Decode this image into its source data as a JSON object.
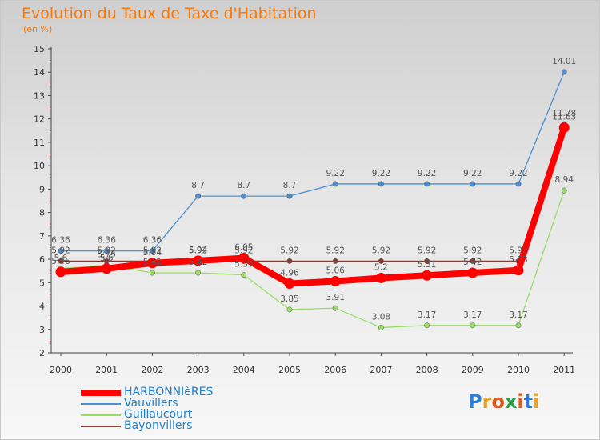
{
  "title": "Evolution du Taux de Taxe d'Habitation",
  "subtitle": "(en %)",
  "logo": {
    "text": "Proxiti",
    "colors": [
      "#2b7fd6",
      "#e8a020",
      "#e05a1a",
      "#27a040",
      "#e05a1a",
      "#2b7fd6",
      "#e8a020"
    ]
  },
  "chart_data": {
    "type": "line",
    "x": [
      "2000",
      "2001",
      "2002",
      "2003",
      "2004",
      "2005",
      "2006",
      "2007",
      "2008",
      "2009",
      "2010",
      "2011"
    ],
    "ylim": [
      2,
      15
    ],
    "yticks": [
      2,
      3,
      4,
      5,
      6,
      7,
      8,
      9,
      10,
      11,
      12,
      13,
      14,
      15
    ],
    "grid": false,
    "legend_position": "bottom-left",
    "series": [
      {
        "name": "HARBONNIèRES",
        "color": "#ff0000",
        "values": [
          5.46,
          5.6,
          5.84,
          5.94,
          6.05,
          4.96,
          5.06,
          5.2,
          5.31,
          5.42,
          5.53,
          11.63
        ],
        "labels": [
          "5.46",
          "5.6",
          "5.84",
          "5.94",
          "6.05",
          "4.96",
          "5.06",
          "5.2",
          "5.31",
          "5.42",
          "5.53",
          "11.63"
        ]
      },
      {
        "name": "Vauvillers",
        "color": "#4a8fd0",
        "values": [
          6.36,
          6.36,
          6.36,
          8.7,
          8.7,
          8.7,
          9.22,
          9.22,
          9.22,
          9.22,
          9.22,
          14.01
        ],
        "labels": [
          "6.36",
          "6.36",
          "6.36",
          "8.7",
          "8.7",
          "8.7",
          "9.22",
          "9.22",
          "9.22",
          "9.22",
          "9.22",
          "14.01"
        ]
      },
      {
        "name": "Guillaucourt",
        "color": "#99dd66",
        "values": [
          5.6,
          5.75,
          5.42,
          5.42,
          5.33,
          3.85,
          3.91,
          3.08,
          3.17,
          3.17,
          3.17,
          8.94
        ],
        "labels": [
          "5.6",
          "5.75",
          "5.42",
          "5.42",
          "5.33",
          "3.85",
          "3.91",
          "3.08",
          "3.17",
          "3.17",
          "3.17",
          "8.94"
        ]
      },
      {
        "name": "Bayonvillers",
        "color": "#8b3a3a",
        "values": [
          5.92,
          5.92,
          5.92,
          5.92,
          5.92,
          5.92,
          5.92,
          5.92,
          5.92,
          5.92,
          5.92,
          11.78
        ],
        "labels": [
          "5.92",
          "5.92",
          "5.92",
          "5.92",
          "5.92",
          "5.92",
          "5.92",
          "5.92",
          "5.92",
          "5.92",
          "5.92",
          "11.78"
        ]
      }
    ]
  }
}
